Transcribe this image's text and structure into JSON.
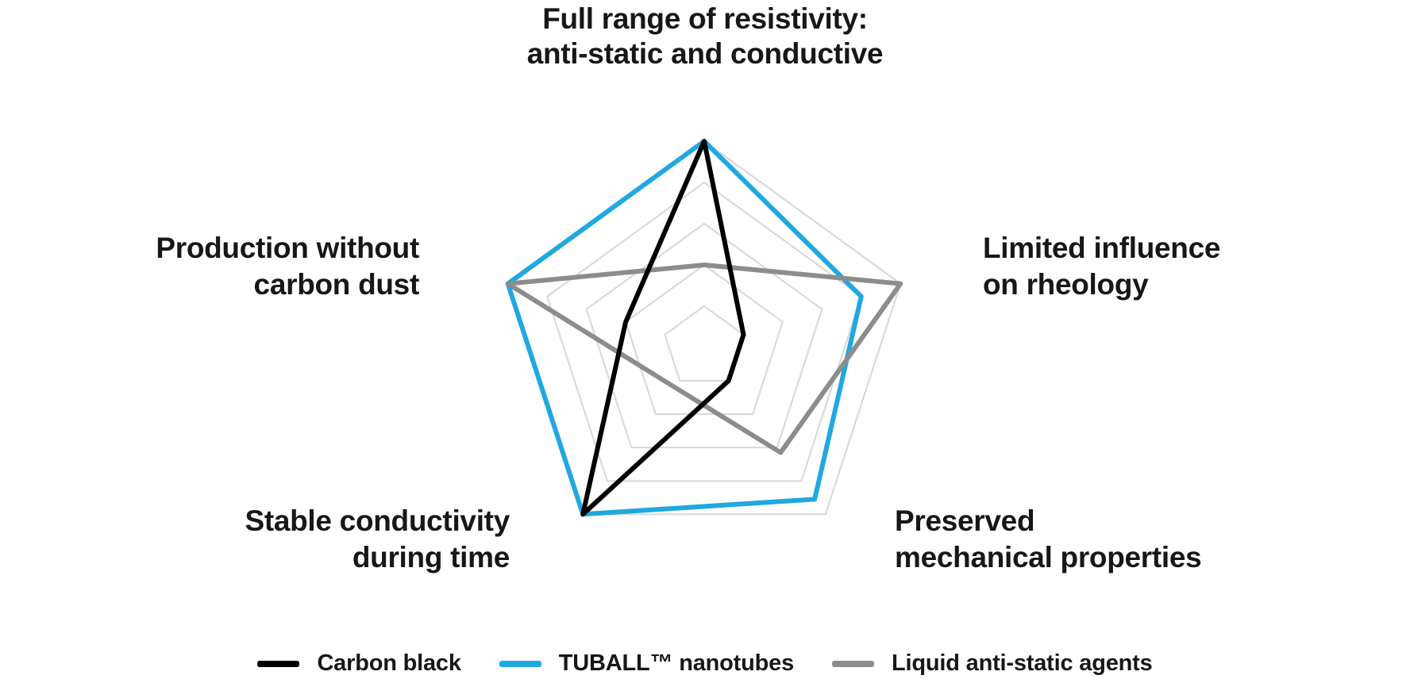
{
  "chart_data": {
    "type": "radar",
    "title": "Full range of resistivity: anti-static and conductive",
    "axes": [
      {
        "id": "resistivity",
        "label": "Full range of resistivity: anti-static and conductive",
        "lines": [
          "Full range of resistivity:",
          "anti-static and conductive"
        ]
      },
      {
        "id": "rheology",
        "label": "Limited influence on rheology",
        "lines": [
          "Limited influence",
          "on rheology"
        ]
      },
      {
        "id": "mechanical",
        "label": "Preserved mechanical properties",
        "lines": [
          "Preserved",
          "mechanical properties"
        ]
      },
      {
        "id": "stability",
        "label": "Stable conductivity during time",
        "lines": [
          "Stable conductivity",
          "during time"
        ]
      },
      {
        "id": "carbon-dust",
        "label": "Production without carbon dust",
        "lines": [
          "Production without",
          "carbon dust"
        ]
      }
    ],
    "scale": {
      "min": 0,
      "max": 1,
      "grid_levels": 5
    },
    "grid": {
      "shape": "pentagon",
      "rings": 5,
      "spokes": false,
      "color": "#D9D9D9"
    },
    "series": [
      {
        "name": "Carbon black",
        "color": "#000000",
        "values": [
          1.0,
          0.2,
          0.2,
          1.0,
          0.4
        ]
      },
      {
        "name": "TUBALL™ nanotubes",
        "color": "#1FA8E1",
        "values": [
          1.0,
          0.8,
          0.91,
          1.0,
          1.0
        ]
      },
      {
        "name": "Liquid anti-static agents",
        "color": "#8C8C8C",
        "values": [
          0.4,
          1.0,
          0.63,
          0.24,
          1.0
        ]
      }
    ],
    "legend_position": "bottom"
  },
  "style": {
    "background": "#FFFFFF",
    "text_color": "#171717",
    "grid_color": "#D9D9D9",
    "series_line_width": 6,
    "grid_line_width": 2.2
  }
}
